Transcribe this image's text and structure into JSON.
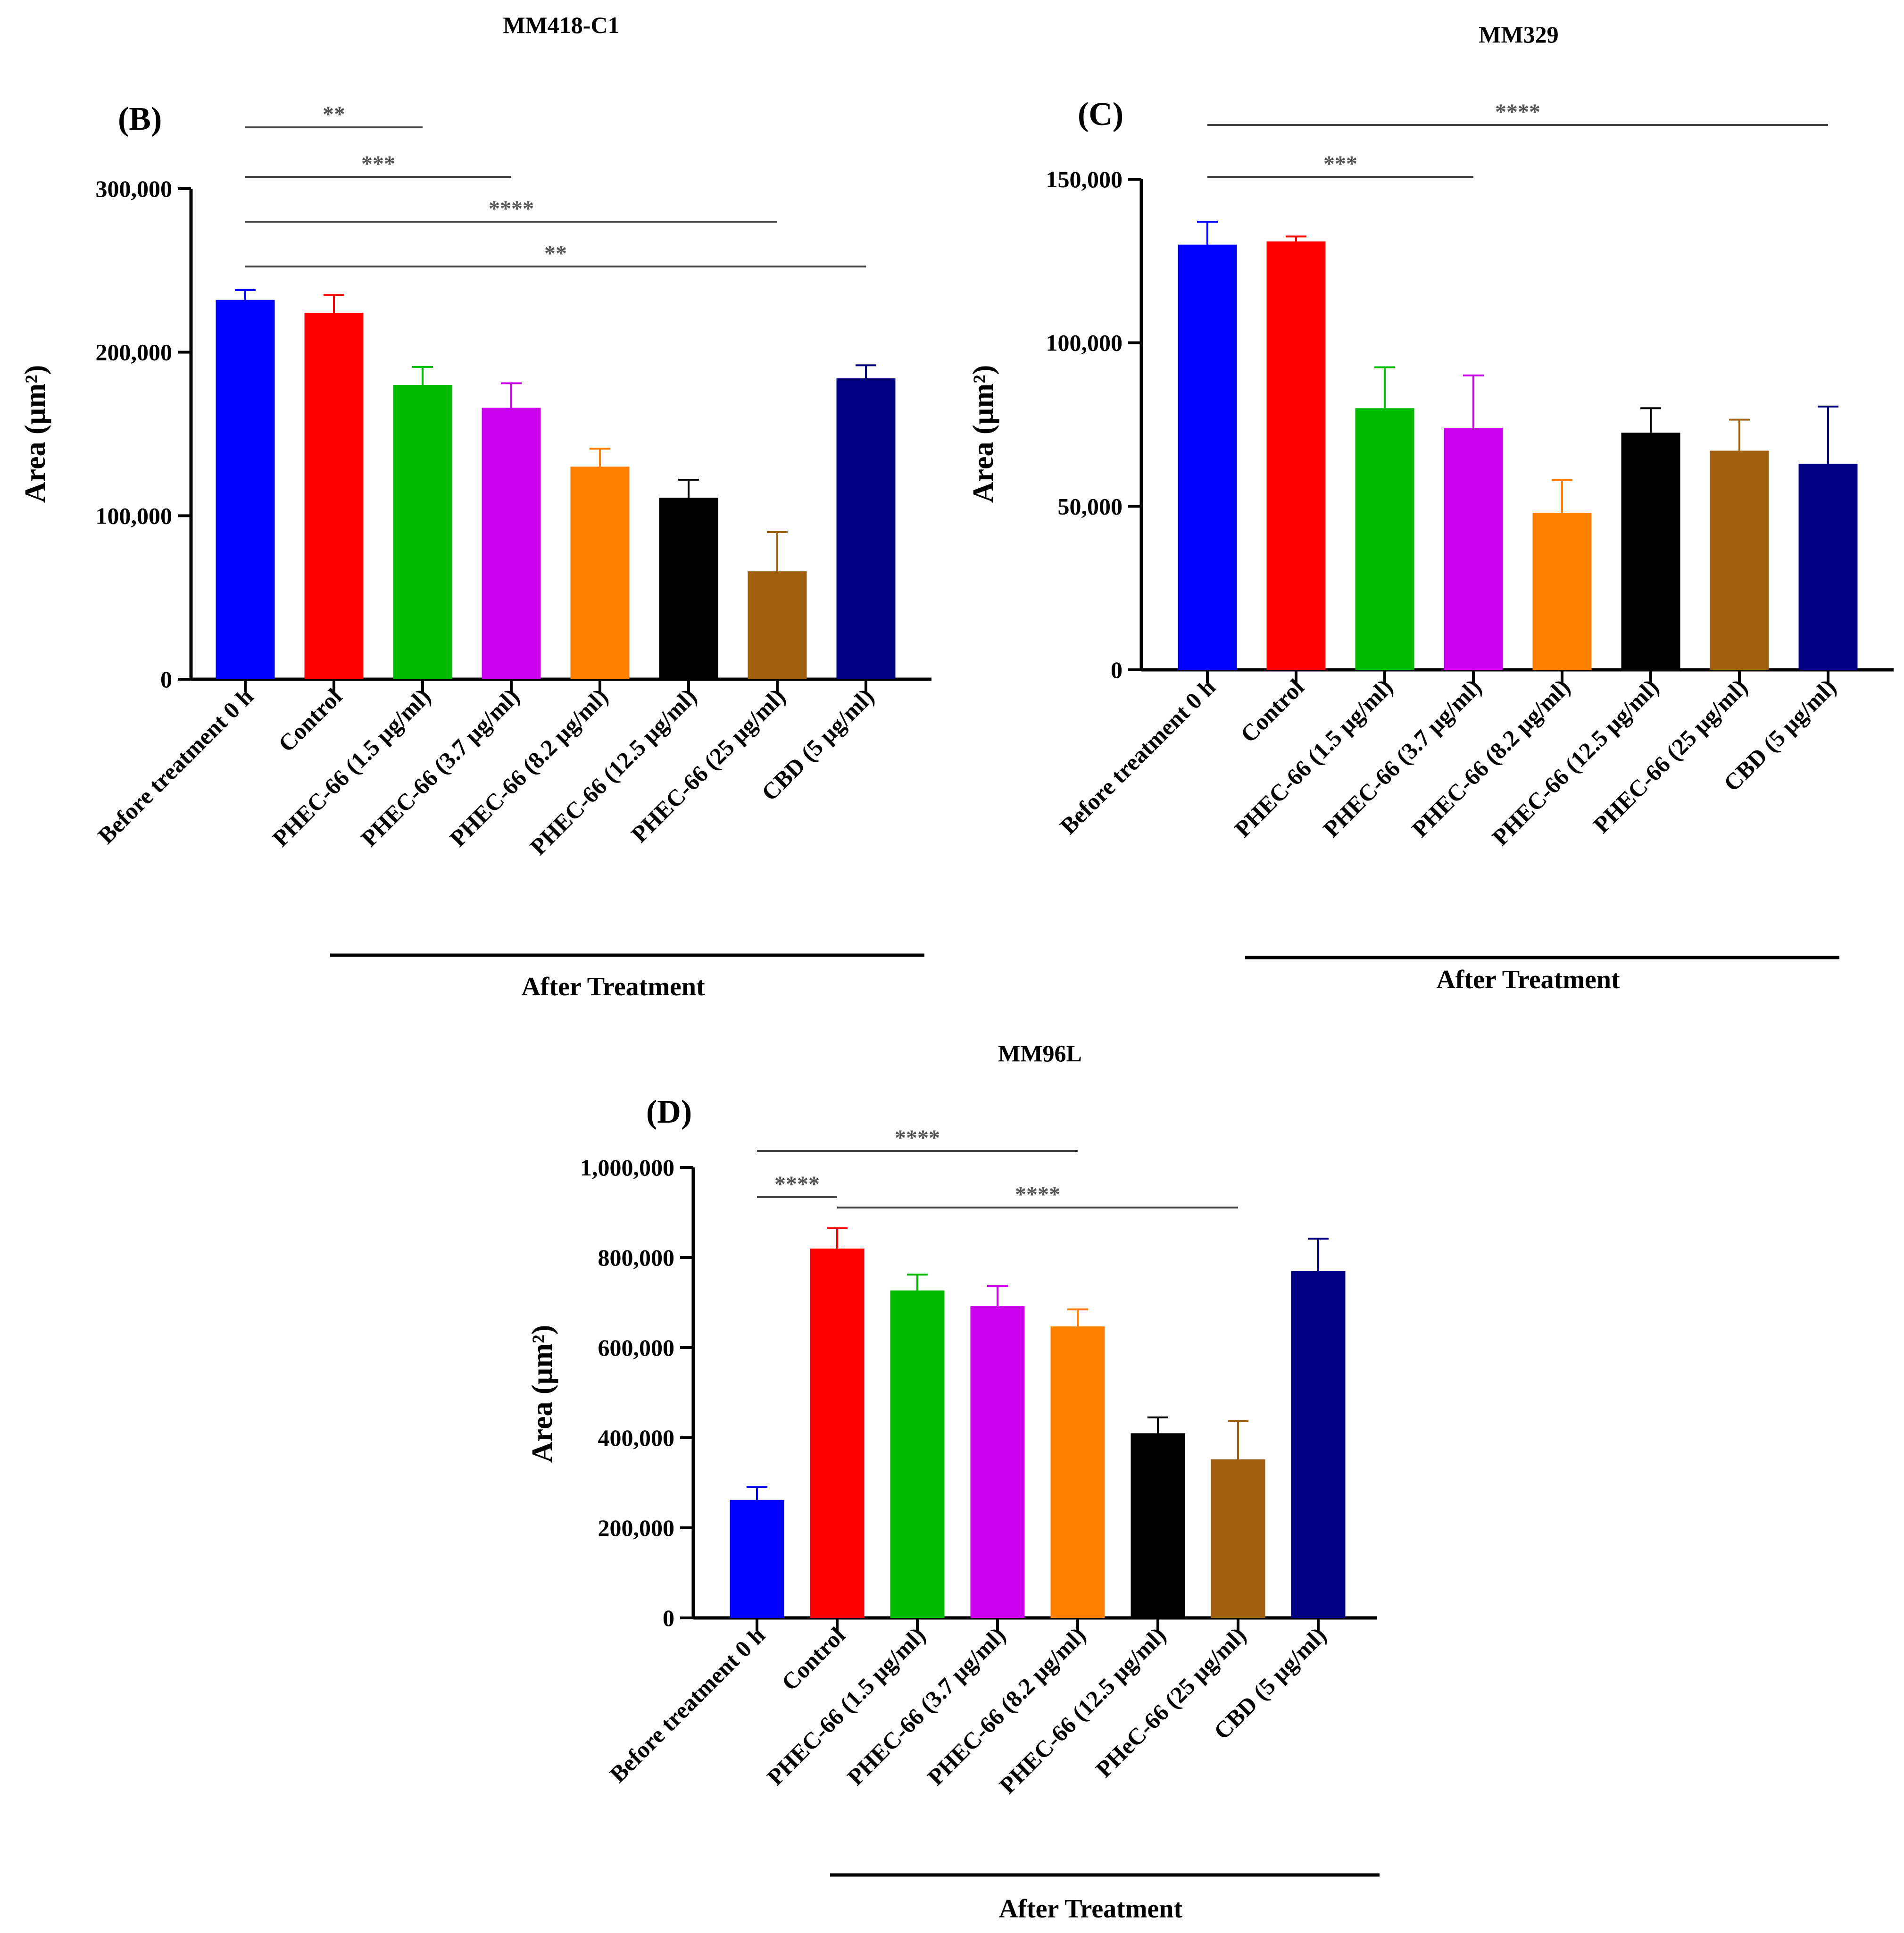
{
  "chart_data": [
    {
      "type": "bar",
      "panel": "(B)",
      "title": "MM418-C1",
      "ylabel": "Area (µm²)",
      "ylim": [
        0,
        300000
      ],
      "yticks": [
        0,
        100000,
        200000,
        300000
      ],
      "ytick_labels": [
        "0",
        "100,000",
        "200,000",
        "300,000"
      ],
      "categories": [
        "Before treatment 0 h",
        "Control",
        "PHEC-66 (1.5 µg/ml)",
        "PHEC-66 (3.7 µg/ml)",
        "PHEC-66 (8.2 µg/ml)",
        "PHEC-66 (12.5 µg/ml)",
        "PHEC-66 (25 µg/ml)",
        "CBD (5 µg/ml)"
      ],
      "values": [
        232000,
        224000,
        180000,
        166000,
        130000,
        111000,
        66000,
        184000
      ],
      "errors": [
        6000,
        11000,
        11000,
        15000,
        11000,
        11000,
        24000,
        8000
      ],
      "colors": [
        "#0000ff",
        "#ff0000",
        "#00bb00",
        "#cc00ee",
        "#ff8000",
        "#000000",
        "#a0600f",
        "#000080"
      ],
      "group_label": "After Treatment",
      "significance": [
        {
          "from": 0,
          "to": 2,
          "label": "**"
        },
        {
          "from": 0,
          "to": 3,
          "label": "***"
        },
        {
          "from": 0,
          "to": 6,
          "label": "****"
        },
        {
          "from": 0,
          "to": 7,
          "label": "**"
        }
      ]
    },
    {
      "type": "bar",
      "panel": "(C)",
      "title": "MM329",
      "ylabel": "Area (µm²)",
      "ylim": [
        0,
        150000
      ],
      "yticks": [
        0,
        50000,
        100000,
        150000
      ],
      "ytick_labels": [
        "0",
        "50,000",
        "100,000",
        "150,000"
      ],
      "categories": [
        "Before treatment 0 h",
        "Control",
        "PHEC-66 (1.5 µg/ml)",
        "PHEC-66 (3.7 µg/ml)",
        "PHEC-66 (8.2 µg/ml)",
        "PHEC-66 (12.5 µg/ml)",
        "PHEC-66 (25 µg/ml)",
        "CBD (5 µg/ml)"
      ],
      "values": [
        130000,
        131000,
        80000,
        74000,
        48000,
        72500,
        67000,
        63000
      ],
      "errors": [
        7000,
        1500,
        12500,
        16000,
        10000,
        7500,
        9500,
        17500
      ],
      "colors": [
        "#0000ff",
        "#ff0000",
        "#00bb00",
        "#cc00ee",
        "#ff8000",
        "#000000",
        "#a0600f",
        "#000080"
      ],
      "group_label": "After Treatment",
      "significance": [
        {
          "from": 0,
          "to": 3,
          "label": "***"
        },
        {
          "from": 0,
          "to": 7,
          "label": "****"
        }
      ]
    },
    {
      "type": "bar",
      "panel": "(D)",
      "title": "MM96L",
      "ylabel": "Area (µm²)",
      "ylim": [
        0,
        1000000
      ],
      "yticks": [
        0,
        200000,
        400000,
        600000,
        800000,
        1000000
      ],
      "ytick_labels": [
        "0",
        "200,000",
        "400,000",
        "600,000",
        "800,000",
        "1,000,000"
      ],
      "categories": [
        "Before treatment 0 h",
        "Control",
        "PHEC-66 (1.5 µg/ml)",
        "PHEC-66 (3.7 µg/ml)",
        "PHEC-66 (8.2 µg/ml)",
        "PHEC-66 (12.5 µg/ml)",
        "PHeC-66 (25 µg/ml)",
        "CBD (5 µg/ml)"
      ],
      "values": [
        262000,
        820000,
        727000,
        692000,
        647000,
        410000,
        352000,
        770000
      ],
      "errors": [
        28000,
        45000,
        35000,
        45000,
        38000,
        35000,
        85000,
        72000
      ],
      "colors": [
        "#0000ff",
        "#ff0000",
        "#00bb00",
        "#cc00ee",
        "#ff8000",
        "#000000",
        "#a0600f",
        "#000080"
      ],
      "group_label": "After Treatment",
      "significance": [
        {
          "from": 0,
          "to": 1,
          "label": "****"
        },
        {
          "from": 0,
          "to": 4,
          "label": "****"
        },
        {
          "from": 1,
          "to": 6,
          "label": "****"
        }
      ]
    }
  ]
}
